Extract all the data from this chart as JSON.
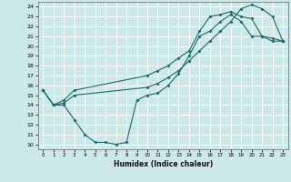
{
  "xlabel": "Humidex (Indice chaleur)",
  "bg_color": "#cce8e8",
  "line_color": "#1a6b6b",
  "grid_color": "#ffffff",
  "xlim": [
    -0.5,
    23.5
  ],
  "ylim": [
    9.5,
    24.5
  ],
  "line1_x": [
    0,
    1,
    2,
    3,
    4,
    5,
    6,
    7,
    8,
    9,
    10,
    11,
    12,
    13,
    14,
    15,
    16,
    17,
    18,
    19,
    20,
    21,
    22,
    23
  ],
  "line1_y": [
    15.5,
    14.0,
    14.0,
    12.5,
    11.0,
    10.2,
    10.2,
    10.0,
    10.2,
    14.5,
    15.0,
    15.2,
    16.0,
    17.2,
    19.0,
    21.0,
    21.5,
    22.5,
    23.2,
    22.5,
    21.0,
    21.0,
    20.5,
    20.5
  ],
  "line2_x": [
    0,
    1,
    2,
    3,
    10,
    11,
    12,
    13,
    14,
    15,
    16,
    17,
    18,
    19,
    20,
    21,
    22,
    23
  ],
  "line2_y": [
    15.5,
    14.0,
    14.2,
    15.0,
    15.8,
    16.2,
    16.8,
    17.5,
    18.5,
    19.5,
    20.5,
    21.5,
    22.5,
    23.8,
    24.2,
    23.8,
    23.0,
    20.5
  ],
  "line3_x": [
    0,
    1,
    2,
    3,
    10,
    11,
    12,
    13,
    14,
    15,
    16,
    17,
    18,
    19,
    20,
    21,
    22,
    23
  ],
  "line3_y": [
    15.5,
    14.0,
    14.5,
    15.5,
    17.0,
    17.5,
    18.0,
    18.8,
    19.5,
    21.5,
    23.0,
    23.2,
    23.5,
    23.0,
    22.8,
    21.0,
    20.8,
    20.5
  ],
  "xticks": [
    0,
    1,
    2,
    3,
    4,
    5,
    6,
    7,
    8,
    9,
    10,
    11,
    12,
    13,
    14,
    15,
    16,
    17,
    18,
    19,
    20,
    21,
    22,
    23
  ],
  "yticks": [
    10,
    11,
    12,
    13,
    14,
    15,
    16,
    17,
    18,
    19,
    20,
    21,
    22,
    23,
    24
  ]
}
